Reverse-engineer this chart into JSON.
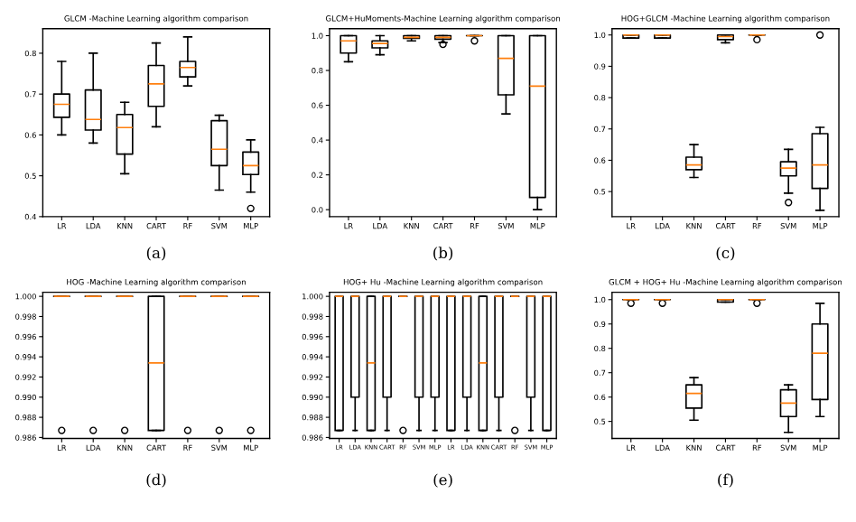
{
  "chart_data": [
    {
      "type": "box",
      "title": "GLCM -Machine Learning algorithm comparison",
      "categories": [
        "LR",
        "LDA",
        "KNN",
        "CART",
        "RF",
        "SVM",
        "MLP"
      ],
      "ylim": [
        0.4,
        0.86
      ],
      "yticks": [
        0.4,
        0.5,
        0.6,
        0.7,
        0.8
      ],
      "annotations": [
        "(a)"
      ],
      "boxes": [
        {
          "low": 0.6,
          "q1": 0.643,
          "median": 0.675,
          "q3": 0.7,
          "high": 0.78
        },
        {
          "low": 0.58,
          "q1": 0.612,
          "median": 0.638,
          "q3": 0.71,
          "high": 0.8
        },
        {
          "low": 0.505,
          "q1": 0.553,
          "median": 0.618,
          "q3": 0.65,
          "high": 0.68
        },
        {
          "low": 0.62,
          "q1": 0.67,
          "median": 0.725,
          "q3": 0.77,
          "high": 0.825
        },
        {
          "low": 0.72,
          "q1": 0.742,
          "median": 0.765,
          "q3": 0.78,
          "high": 0.84
        },
        {
          "low": 0.465,
          "q1": 0.525,
          "median": 0.565,
          "q3": 0.635,
          "high": 0.648
        },
        {
          "low": 0.46,
          "q1": 0.503,
          "median": 0.525,
          "q3": 0.558,
          "high": 0.588,
          "outliers": [
            0.42
          ]
        }
      ]
    },
    {
      "type": "box",
      "title": "GLCM+HuMoments-Machine Learning algorithm comparison",
      "categories": [
        "LR",
        "LDA",
        "KNN",
        "CART",
        "RF",
        "SVM",
        "MLP"
      ],
      "ylim": [
        -0.04,
        1.04
      ],
      "yticks": [
        {
          "value": 0,
          "label": "0.0"
        },
        0.2,
        0.4,
        0.6,
        0.8,
        {
          "value": 1,
          "label": "1.0"
        }
      ],
      "annotations": [
        "(b)"
      ],
      "boxes": [
        {
          "low": 0.85,
          "q1": 0.9,
          "median": 0.97,
          "q3": 1.0,
          "high": 1.0
        },
        {
          "low": 0.89,
          "q1": 0.93,
          "median": 0.955,
          "q3": 0.97,
          "high": 1.0
        },
        {
          "low": 0.97,
          "q1": 0.985,
          "median": 0.99,
          "q3": 1.0,
          "high": 1.0
        },
        {
          "low": 0.96,
          "q1": 0.98,
          "median": 0.99,
          "q3": 1.0,
          "high": 1.0,
          "outliers": [
            0.95
          ]
        },
        {
          "low": 1.0,
          "q1": 1.0,
          "median": 1.0,
          "q3": 1.0,
          "high": 1.0,
          "outliers": [
            0.97
          ]
        },
        {
          "low": 0.55,
          "q1": 0.66,
          "median": 0.87,
          "q3": 1.0,
          "high": 1.0
        },
        {
          "low": 0.0,
          "q1": 0.07,
          "median": 0.71,
          "q3": 1.0,
          "high": 1.0
        }
      ]
    },
    {
      "type": "box",
      "title": "HOG+GLCM -Machine Learning algorithm comparison",
      "categories": [
        "LR",
        "LDA",
        "KNN",
        "CART",
        "RF",
        "SVM",
        "MLP"
      ],
      "ylim": [
        0.42,
        1.02
      ],
      "yticks": [
        0.5,
        0.6,
        0.7,
        0.8,
        0.9,
        {
          "value": 1,
          "label": "1.0"
        }
      ],
      "annotations": [
        "(c)"
      ],
      "boxes": [
        {
          "low": 0.99,
          "q1": 0.99,
          "median": 1.0,
          "q3": 1.0,
          "high": 1.0
        },
        {
          "low": 0.99,
          "q1": 0.99,
          "median": 1.0,
          "q3": 1.0,
          "high": 1.0
        },
        {
          "low": 0.545,
          "q1": 0.57,
          "median": 0.585,
          "q3": 0.61,
          "high": 0.65
        },
        {
          "low": 0.975,
          "q1": 0.985,
          "median": 0.995,
          "q3": 1.0,
          "high": 1.0
        },
        {
          "low": 1.0,
          "q1": 1.0,
          "median": 1.0,
          "q3": 1.0,
          "high": 1.0,
          "outliers": [
            0.985
          ]
        },
        {
          "low": 0.495,
          "q1": 0.55,
          "median": 0.575,
          "q3": 0.595,
          "high": 0.635,
          "outliers": [
            0.465
          ]
        },
        {
          "low": 0.44,
          "q1": 0.51,
          "median": 0.585,
          "q3": 0.685,
          "high": 0.705,
          "outliers": [
            1.0
          ]
        }
      ]
    },
    {
      "type": "box",
      "title": "HOG -Machine Learning algorithm comparison",
      "categories": [
        "LR",
        "LDA",
        "KNN",
        "CART",
        "RF",
        "SVM",
        "MLP"
      ],
      "ylim": [
        0.9859,
        1.0004
      ],
      "yticks": [
        {
          "value": 0.986,
          "label": "0.986"
        },
        {
          "value": 0.988,
          "label": "0.988"
        },
        {
          "value": 0.99,
          "label": "0.990"
        },
        {
          "value": 0.992,
          "label": "0.992"
        },
        {
          "value": 0.994,
          "label": "0.994"
        },
        {
          "value": 0.996,
          "label": "0.996"
        },
        {
          "value": 0.998,
          "label": "0.998"
        },
        {
          "value": 1.0,
          "label": "1.000"
        }
      ],
      "annotations": [
        "(d)"
      ],
      "boxes": [
        {
          "low": 1.0,
          "q1": 1.0,
          "median": 1.0,
          "q3": 1.0,
          "high": 1.0,
          "outliers": [
            0.9867
          ]
        },
        {
          "low": 1.0,
          "q1": 1.0,
          "median": 1.0,
          "q3": 1.0,
          "high": 1.0,
          "outliers": [
            0.9867
          ]
        },
        {
          "low": 1.0,
          "q1": 1.0,
          "median": 1.0,
          "q3": 1.0,
          "high": 1.0,
          "outliers": [
            0.9867
          ]
        },
        {
          "low": 0.9867,
          "q1": 0.9867,
          "median": 0.9934,
          "q3": 1.0,
          "high": 1.0
        },
        {
          "low": 1.0,
          "q1": 1.0,
          "median": 1.0,
          "q3": 1.0,
          "high": 1.0,
          "outliers": [
            0.9867
          ]
        },
        {
          "low": 1.0,
          "q1": 1.0,
          "median": 1.0,
          "q3": 1.0,
          "high": 1.0,
          "outliers": [
            0.9867
          ]
        },
        {
          "low": 1.0,
          "q1": 1.0,
          "median": 1.0,
          "q3": 1.0,
          "high": 1.0,
          "outliers": [
            0.9867
          ]
        }
      ]
    },
    {
      "type": "box",
      "title": "HOG+ Hu -Machine Learning algorithm comparison",
      "categories": [
        "LR",
        "LDA",
        "KNN",
        "CART",
        "RF",
        "SVM",
        "MLP",
        "LR",
        "LDA",
        "KNN",
        "CART",
        "RF",
        "SVM",
        "MLP"
      ],
      "ylim": [
        0.9859,
        1.0004
      ],
      "yticks": [
        {
          "value": 0.986,
          "label": "0.986"
        },
        {
          "value": 0.988,
          "label": "0.988"
        },
        {
          "value": 0.99,
          "label": "0.990"
        },
        {
          "value": 0.992,
          "label": "0.992"
        },
        {
          "value": 0.994,
          "label": "0.994"
        },
        {
          "value": 0.996,
          "label": "0.996"
        },
        {
          "value": 0.998,
          "label": "0.998"
        },
        {
          "value": 1.0,
          "label": "1.000"
        }
      ],
      "annotations": [
        "(e)"
      ],
      "boxes": [
        {
          "low": 0.9867,
          "q1": 0.9867,
          "median": 1.0,
          "q3": 1.0,
          "high": 1.0
        },
        {
          "low": 0.9867,
          "q1": 0.99,
          "median": 1.0,
          "q3": 1.0,
          "high": 1.0
        },
        {
          "low": 0.9867,
          "q1": 0.9867,
          "median": 0.9934,
          "q3": 1.0,
          "high": 1.0
        },
        {
          "low": 0.9867,
          "q1": 0.99,
          "median": 1.0,
          "q3": 1.0,
          "high": 1.0
        },
        {
          "low": 1.0,
          "q1": 1.0,
          "median": 1.0,
          "q3": 1.0,
          "high": 1.0,
          "outliers": [
            0.9867
          ]
        },
        {
          "low": 0.9867,
          "q1": 0.99,
          "median": 1.0,
          "q3": 1.0,
          "high": 1.0
        },
        {
          "low": 0.9867,
          "q1": 0.99,
          "median": 1.0,
          "q3": 1.0,
          "high": 1.0
        },
        {
          "low": 0.9867,
          "q1": 0.9867,
          "median": 1.0,
          "q3": 1.0,
          "high": 1.0
        },
        {
          "low": 0.9867,
          "q1": 0.99,
          "median": 1.0,
          "q3": 1.0,
          "high": 1.0
        },
        {
          "low": 0.9867,
          "q1": 0.9867,
          "median": 0.9934,
          "q3": 1.0,
          "high": 1.0
        },
        {
          "low": 0.9867,
          "q1": 0.99,
          "median": 1.0,
          "q3": 1.0,
          "high": 1.0
        },
        {
          "low": 1.0,
          "q1": 1.0,
          "median": 1.0,
          "q3": 1.0,
          "high": 1.0,
          "outliers": [
            0.9867
          ]
        },
        {
          "low": 0.9867,
          "q1": 0.99,
          "median": 1.0,
          "q3": 1.0,
          "high": 1.0
        },
        {
          "low": 0.9867,
          "q1": 0.9867,
          "median": 1.0,
          "q3": 1.0,
          "high": 1.0
        }
      ]
    },
    {
      "type": "box",
      "title": "GLCM + HOG+ Hu -Machine Learning algorithm comparison",
      "categories": [
        "LR",
        "LDA",
        "KNN",
        "CART",
        "RF",
        "SVM",
        "MLP"
      ],
      "ylim": [
        0.43,
        1.03
      ],
      "yticks": [
        0.5,
        0.6,
        0.7,
        0.8,
        0.9,
        {
          "value": 1,
          "label": "1.0"
        }
      ],
      "annotations": [
        "(f)"
      ],
      "boxes": [
        {
          "low": 1.0,
          "q1": 1.0,
          "median": 1.0,
          "q3": 1.0,
          "high": 1.0,
          "outliers": [
            0.985
          ]
        },
        {
          "low": 1.0,
          "q1": 1.0,
          "median": 1.0,
          "q3": 1.0,
          "high": 1.0,
          "outliers": [
            0.985
          ]
        },
        {
          "low": 0.505,
          "q1": 0.555,
          "median": 0.615,
          "q3": 0.65,
          "high": 0.68
        },
        {
          "low": 0.99,
          "q1": 0.99,
          "median": 1.0,
          "q3": 1.0,
          "high": 1.0
        },
        {
          "low": 1.0,
          "q1": 1.0,
          "median": 1.0,
          "q3": 1.0,
          "high": 1.0,
          "outliers": [
            0.985
          ]
        },
        {
          "low": 0.455,
          "q1": 0.52,
          "median": 0.575,
          "q3": 0.63,
          "high": 0.65
        },
        {
          "low": 0.52,
          "q1": 0.59,
          "median": 0.78,
          "q3": 0.9,
          "high": 0.985
        }
      ]
    }
  ]
}
